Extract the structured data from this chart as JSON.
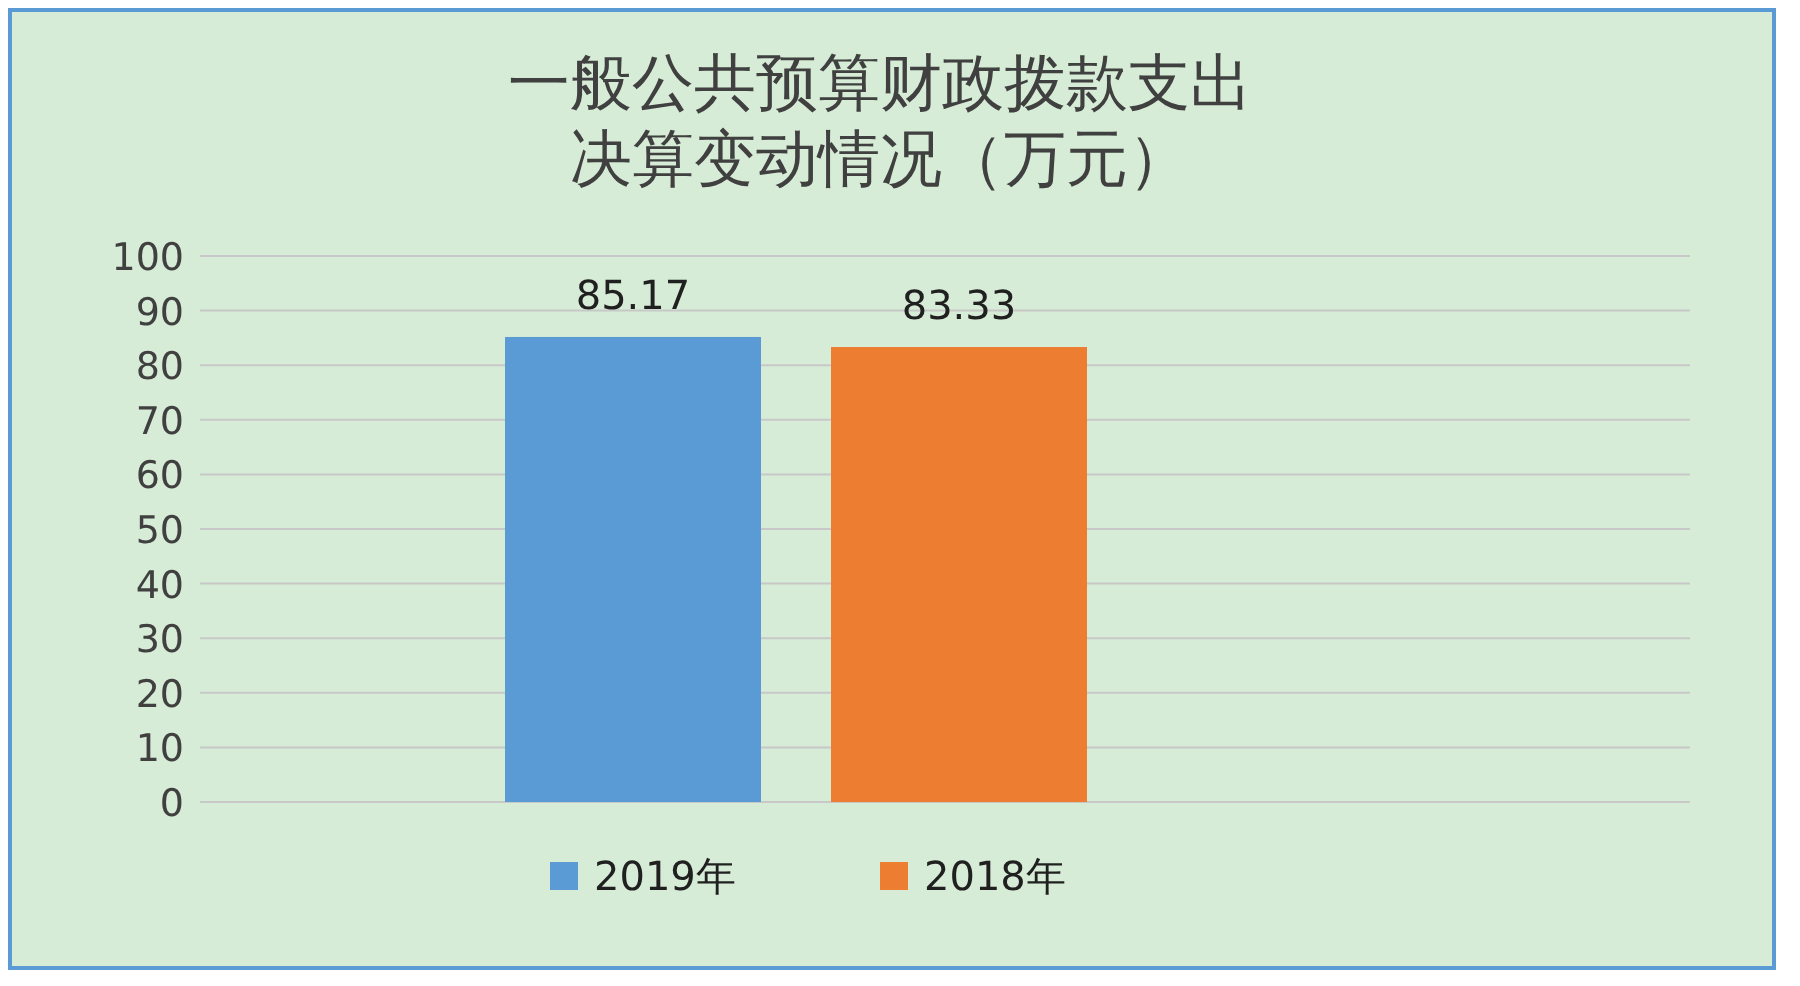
{
  "chart_data": {
    "type": "bar",
    "title": "一般公共预算财政拨款支出决算变动情况（万元）",
    "categories": [
      null
    ],
    "series": [
      {
        "name": "2019年",
        "color": "#5b9bd5",
        "values": [
          85.17
        ]
      },
      {
        "name": "2018年",
        "color": "#ed7d31",
        "values": [
          83.33
        ]
      }
    ],
    "ylim": [
      0,
      100
    ],
    "yticks": [
      0,
      10,
      20,
      30,
      40,
      50,
      60,
      70,
      80,
      90,
      100
    ],
    "grid": "y",
    "legend": "bottom",
    "data_labels": true
  }
}
